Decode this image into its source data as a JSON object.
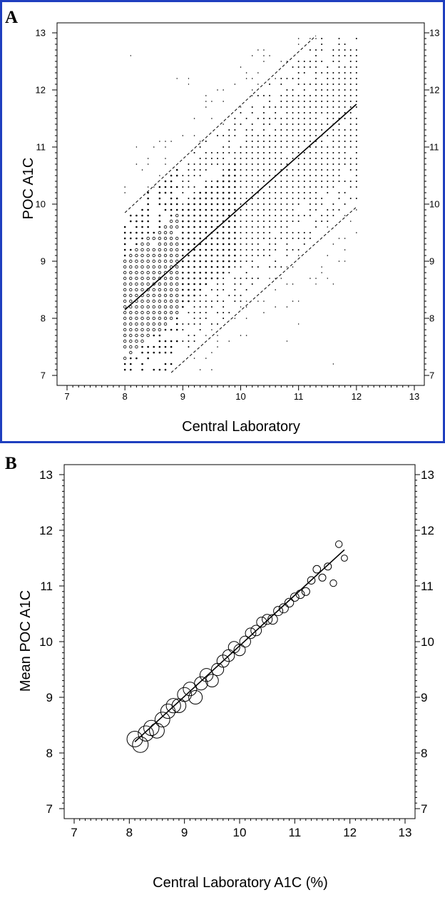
{
  "panels": [
    {
      "letter": "A",
      "border_color": "#1f3fbf",
      "chart_data": {
        "type": "scatter",
        "xlabel": "Central Laboratory",
        "ylabel": "POC A1C",
        "xlim": [
          7,
          13
        ],
        "ylim": [
          7,
          13
        ],
        "x_ticks": [
          "7",
          "8",
          "9",
          "10",
          "11",
          "12",
          "13"
        ],
        "y_ticks": [
          "7",
          "8",
          "9",
          "10",
          "11",
          "12",
          "13"
        ],
        "grid": false,
        "point_grid": {
          "x_min": 8.0,
          "x_max": 12.0,
          "y_min": 7.1,
          "y_max": 12.9,
          "step": 0.1
        },
        "lines": [
          {
            "role": "regression",
            "style": "solid",
            "x": [
              8.0,
              12.0
            ],
            "y": [
              8.15,
              11.75
            ]
          },
          {
            "role": "upper-bound",
            "style": "dashed",
            "x": [
              8.0,
              11.3
            ],
            "y": [
              9.85,
              12.95
            ]
          },
          {
            "role": "lower-bound",
            "style": "dashed",
            "x": [
              8.8,
              12.0
            ],
            "y": [
              7.05,
              9.95
            ]
          }
        ]
      }
    },
    {
      "letter": "B",
      "chart_data": {
        "type": "scatter",
        "xlabel": "Central Laboratory A1C (%)",
        "ylabel": "Mean POC A1C",
        "xlim": [
          7,
          13
        ],
        "ylim": [
          7,
          13
        ],
        "x_ticks": [
          "7",
          "8",
          "9",
          "10",
          "11",
          "12",
          "13"
        ],
        "y_ticks": [
          "7",
          "8",
          "9",
          "10",
          "11",
          "12",
          "13"
        ],
        "grid": false,
        "points": [
          {
            "x": 8.1,
            "y": 8.25,
            "size": 3.0
          },
          {
            "x": 8.2,
            "y": 8.15,
            "size": 3.0
          },
          {
            "x": 8.3,
            "y": 8.35,
            "size": 2.9
          },
          {
            "x": 8.4,
            "y": 8.45,
            "size": 2.9
          },
          {
            "x": 8.5,
            "y": 8.4,
            "size": 2.8
          },
          {
            "x": 8.6,
            "y": 8.6,
            "size": 2.8
          },
          {
            "x": 8.7,
            "y": 8.75,
            "size": 2.7
          },
          {
            "x": 8.8,
            "y": 8.85,
            "size": 2.7
          },
          {
            "x": 8.9,
            "y": 8.85,
            "size": 2.6
          },
          {
            "x": 9.0,
            "y": 9.05,
            "size": 2.6
          },
          {
            "x": 9.1,
            "y": 9.15,
            "size": 2.5
          },
          {
            "x": 9.2,
            "y": 9.0,
            "size": 2.5
          },
          {
            "x": 9.3,
            "y": 9.25,
            "size": 2.4
          },
          {
            "x": 9.4,
            "y": 9.4,
            "size": 2.4
          },
          {
            "x": 9.5,
            "y": 9.3,
            "size": 2.3
          },
          {
            "x": 9.6,
            "y": 9.5,
            "size": 2.2
          },
          {
            "x": 9.7,
            "y": 9.65,
            "size": 2.2
          },
          {
            "x": 9.8,
            "y": 9.75,
            "size": 2.1
          },
          {
            "x": 9.9,
            "y": 9.9,
            "size": 2.0
          },
          {
            "x": 10.0,
            "y": 9.85,
            "size": 2.0
          },
          {
            "x": 10.1,
            "y": 10.0,
            "size": 1.9
          },
          {
            "x": 10.2,
            "y": 10.15,
            "size": 1.8
          },
          {
            "x": 10.3,
            "y": 10.2,
            "size": 1.8
          },
          {
            "x": 10.4,
            "y": 10.35,
            "size": 1.7
          },
          {
            "x": 10.5,
            "y": 10.4,
            "size": 1.7
          },
          {
            "x": 10.6,
            "y": 10.4,
            "size": 1.6
          },
          {
            "x": 10.7,
            "y": 10.55,
            "size": 1.5
          },
          {
            "x": 10.8,
            "y": 10.6,
            "size": 1.5
          },
          {
            "x": 10.9,
            "y": 10.7,
            "size": 1.4
          },
          {
            "x": 11.0,
            "y": 10.8,
            "size": 1.3
          },
          {
            "x": 11.1,
            "y": 10.85,
            "size": 1.3
          },
          {
            "x": 11.2,
            "y": 10.9,
            "size": 1.2
          },
          {
            "x": 11.3,
            "y": 11.1,
            "size": 1.1
          },
          {
            "x": 11.4,
            "y": 11.3,
            "size": 1.1
          },
          {
            "x": 11.5,
            "y": 11.15,
            "size": 1.0
          },
          {
            "x": 11.6,
            "y": 11.35,
            "size": 1.0
          },
          {
            "x": 11.7,
            "y": 11.05,
            "size": 0.9
          },
          {
            "x": 11.8,
            "y": 11.75,
            "size": 0.9
          },
          {
            "x": 11.9,
            "y": 11.5,
            "size": 0.8
          }
        ],
        "lines": [
          {
            "role": "regression",
            "style": "solid",
            "x": [
              8.1,
              11.9
            ],
            "y": [
              8.2,
              11.65
            ]
          }
        ]
      }
    }
  ]
}
